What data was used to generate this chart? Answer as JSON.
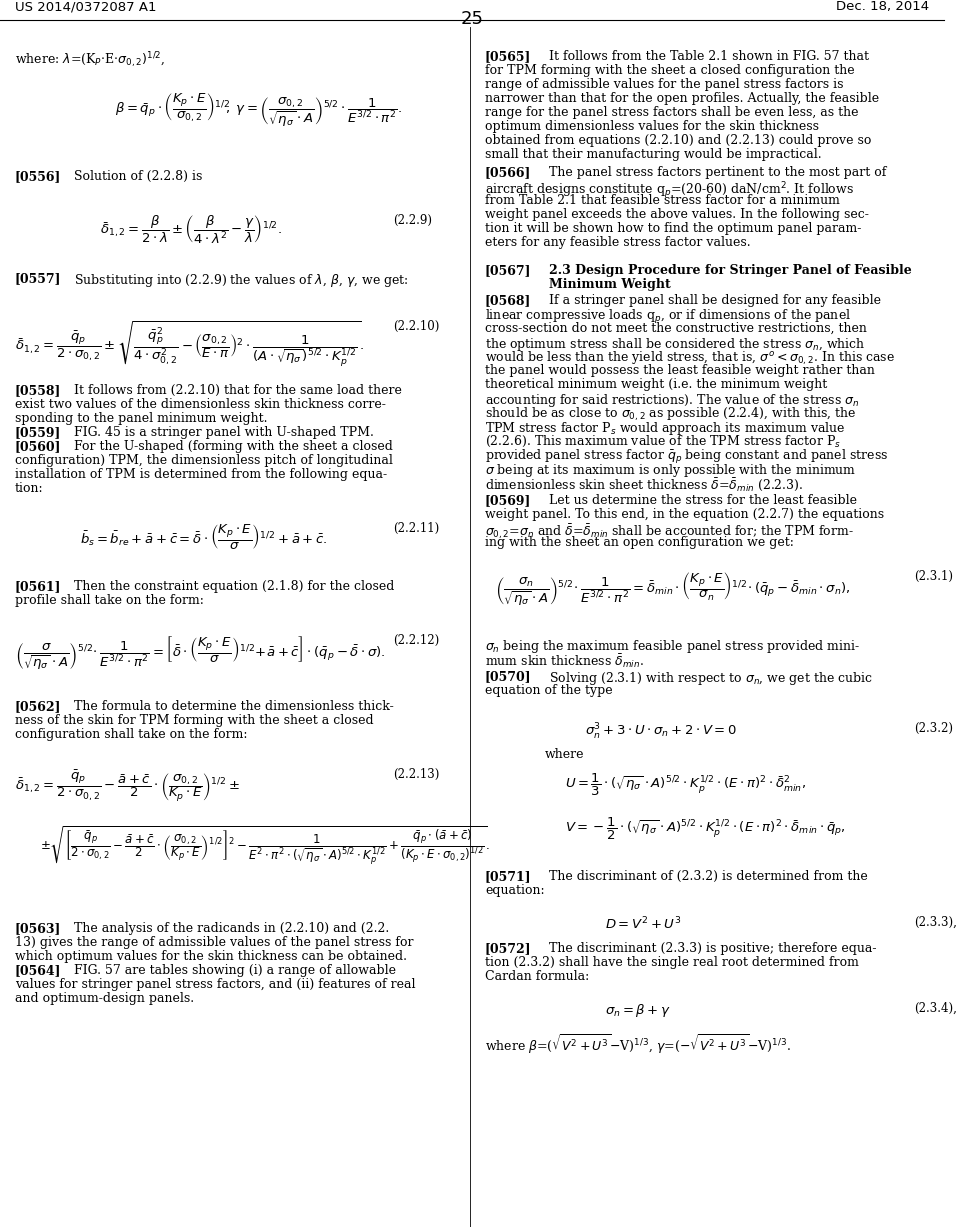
{
  "bg_color": "#ffffff",
  "header_left": "US 2014/0372087 A1",
  "header_right": "Dec. 18, 2014",
  "page_number": "25"
}
